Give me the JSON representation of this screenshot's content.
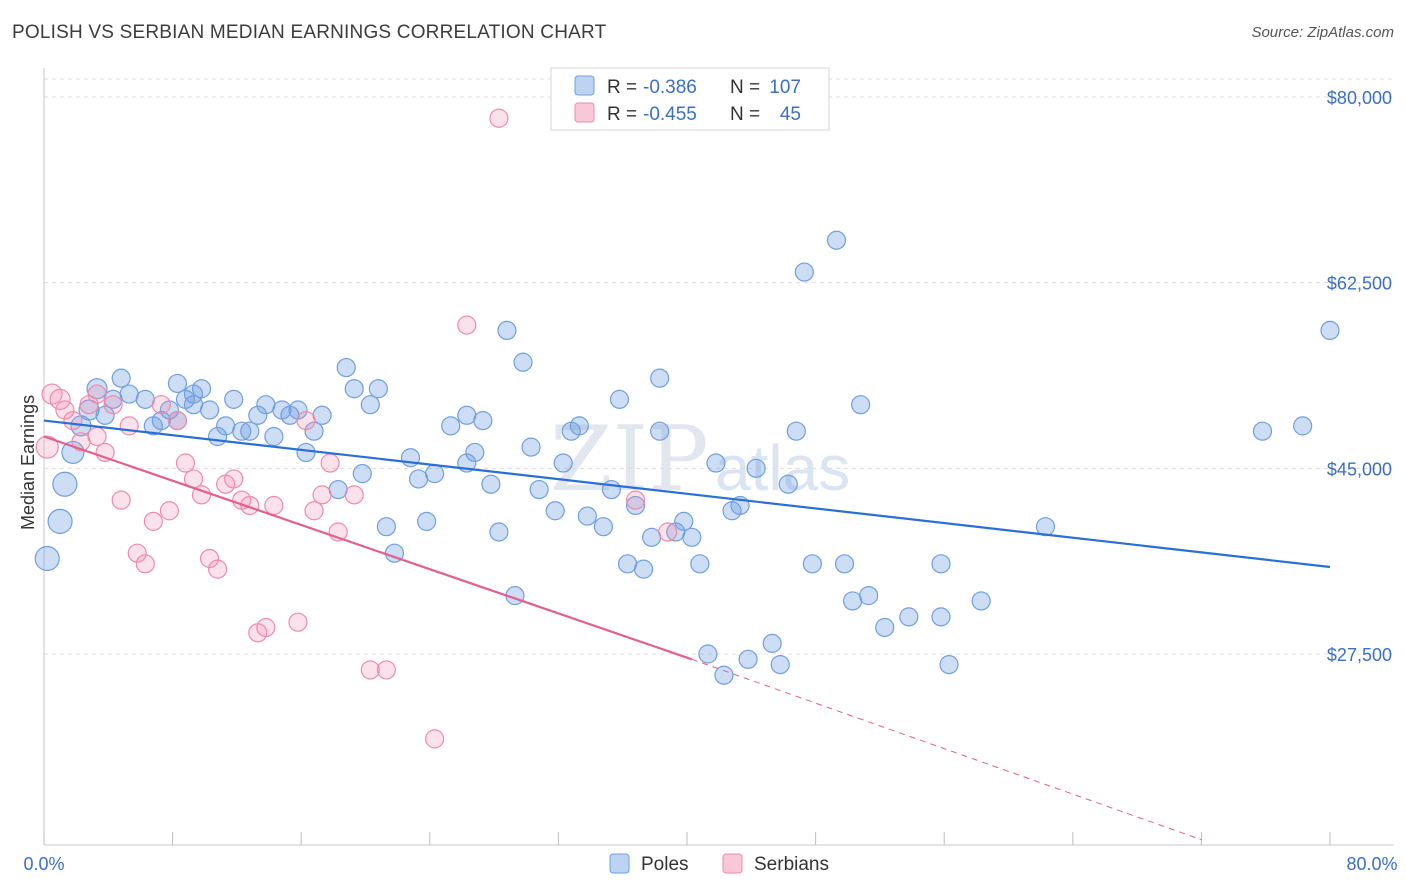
{
  "title": "POLISH VS SERBIAN MEDIAN EARNINGS CORRELATION CHART",
  "source": "Source: ZipAtlas.com",
  "watermark": {
    "part1": "ZIP",
    "part2": "atlas"
  },
  "colors": {
    "poles": "#6f9fe0",
    "poles_line": "#2a6fd6",
    "serbians": "#f08aab",
    "serbians_line": "#e35f8d",
    "tick": "#3b6fc6"
  },
  "legend": {
    "rows": [
      {
        "r_label": "R =",
        "r_value": "-0.386",
        "n_label": "N =",
        "n_value": "107"
      },
      {
        "r_label": "R =",
        "r_value": "-0.455",
        "n_label": "N =",
        "n_value": "45"
      }
    ]
  },
  "bottom_legend": {
    "poles": "Poles",
    "serbians": "Serbians"
  },
  "chart_data": {
    "type": "scatter",
    "xlabel": "",
    "ylabel": "Median Earnings",
    "xlim": [
      0,
      80
    ],
    "ylim": [
      10000,
      83000
    ],
    "x_tick_labels": {
      "left": "0.0%",
      "right": "80.0%"
    },
    "y_ticks": [
      {
        "value": 80000,
        "label": "$80,000"
      },
      {
        "value": 62500,
        "label": "$62,500"
      },
      {
        "value": 45000,
        "label": "$45,000"
      },
      {
        "value": 27500,
        "label": "$27,500"
      }
    ],
    "series": [
      {
        "name": "Poles",
        "trend": {
          "x0": 0,
          "y0": 49500,
          "x1": 80,
          "y1": 35700
        },
        "points": [
          [
            0.2,
            36500,
            12
          ],
          [
            1,
            40000,
            12
          ],
          [
            1.3,
            43500,
            12
          ],
          [
            1.8,
            46500,
            11
          ],
          [
            2.3,
            49000,
            10
          ],
          [
            2.8,
            50500,
            10
          ],
          [
            3.3,
            52500,
            10
          ],
          [
            3.8,
            50000,
            9
          ],
          [
            4.3,
            51500,
            9
          ],
          [
            4.8,
            53500,
            9
          ],
          [
            5.3,
            52000,
            9
          ],
          [
            6.3,
            51500,
            9
          ],
          [
            6.8,
            49000,
            9
          ],
          [
            7.3,
            49500,
            9
          ],
          [
            7.8,
            50500,
            9
          ],
          [
            8.3,
            49500,
            9
          ],
          [
            8.3,
            53000,
            9
          ],
          [
            8.8,
            51500,
            9
          ],
          [
            9.3,
            52000,
            9
          ],
          [
            9.3,
            51000,
            9
          ],
          [
            9.8,
            52500,
            9
          ],
          [
            10.3,
            50500,
            9
          ],
          [
            10.8,
            48000,
            9
          ],
          [
            11.3,
            49000,
            9
          ],
          [
            11.8,
            51500,
            9
          ],
          [
            12.3,
            48500,
            9
          ],
          [
            12.8,
            48500,
            9
          ],
          [
            13.3,
            50000,
            9
          ],
          [
            13.8,
            51000,
            9
          ],
          [
            14.3,
            48000,
            9
          ],
          [
            14.8,
            50500,
            9
          ],
          [
            15.3,
            50000,
            9
          ],
          [
            15.8,
            50500,
            9
          ],
          [
            16.3,
            46500,
            9
          ],
          [
            16.8,
            48500,
            9
          ],
          [
            17.3,
            50000,
            9
          ],
          [
            18.3,
            43000,
            9
          ],
          [
            18.8,
            54500,
            9
          ],
          [
            19.3,
            52500,
            9
          ],
          [
            19.8,
            44500,
            9
          ],
          [
            20.3,
            51000,
            9
          ],
          [
            20.8,
            52500,
            9
          ],
          [
            21.3,
            39500,
            9
          ],
          [
            21.8,
            37000,
            9
          ],
          [
            22.8,
            46000,
            9
          ],
          [
            23.3,
            44000,
            9
          ],
          [
            23.8,
            40000,
            9
          ],
          [
            24.3,
            44500,
            9
          ],
          [
            25.3,
            49000,
            9
          ],
          [
            26.3,
            45500,
            9
          ],
          [
            26.3,
            50000,
            9
          ],
          [
            26.8,
            46500,
            9
          ],
          [
            27.3,
            49500,
            9
          ],
          [
            27.8,
            43500,
            9
          ],
          [
            28.3,
            39000,
            9
          ],
          [
            28.8,
            58000,
            9
          ],
          [
            29.3,
            33000,
            9
          ],
          [
            29.8,
            55000,
            9
          ],
          [
            30.3,
            47000,
            9
          ],
          [
            30.8,
            43000,
            9
          ],
          [
            31.8,
            41000,
            9
          ],
          [
            32.3,
            45500,
            9
          ],
          [
            32.8,
            48500,
            9
          ],
          [
            33.3,
            49000,
            9
          ],
          [
            33.8,
            40500,
            9
          ],
          [
            34.8,
            39500,
            9
          ],
          [
            35.3,
            43000,
            9
          ],
          [
            35.8,
            51500,
            9
          ],
          [
            36.3,
            36000,
            9
          ],
          [
            36.8,
            41500,
            9
          ],
          [
            37.3,
            35500,
            9
          ],
          [
            37.8,
            38500,
            9
          ],
          [
            38.3,
            48500,
            9
          ],
          [
            38.3,
            53500,
            9
          ],
          [
            39.3,
            39000,
            9
          ],
          [
            39.8,
            40000,
            9
          ],
          [
            40.3,
            38500,
            9
          ],
          [
            40.8,
            36000,
            9
          ],
          [
            41.3,
            27500,
            9
          ],
          [
            41.8,
            45500,
            9
          ],
          [
            42.3,
            25500,
            9
          ],
          [
            42.8,
            41000,
            9
          ],
          [
            43.3,
            41500,
            9
          ],
          [
            43.8,
            27000,
            9
          ],
          [
            44.3,
            45000,
            9
          ],
          [
            45.3,
            28500,
            9
          ],
          [
            45.8,
            26500,
            9
          ],
          [
            46.3,
            43500,
            9
          ],
          [
            46.8,
            48500,
            9
          ],
          [
            47.3,
            63500,
            9
          ],
          [
            47.8,
            36000,
            9
          ],
          [
            49.3,
            66500,
            9
          ],
          [
            49.8,
            36000,
            9
          ],
          [
            50.3,
            32500,
            9
          ],
          [
            50.8,
            51000,
            9
          ],
          [
            51.3,
            33000,
            9
          ],
          [
            52.3,
            30000,
            9
          ],
          [
            53.8,
            31000,
            9
          ],
          [
            55.8,
            31000,
            9
          ],
          [
            55.8,
            36000,
            9
          ],
          [
            56.3,
            26500,
            9
          ],
          [
            58.3,
            32500,
            9
          ],
          [
            62.3,
            39500,
            9
          ],
          [
            75.8,
            48500,
            9
          ],
          [
            78.3,
            49000,
            9
          ],
          [
            80.0,
            58000,
            9
          ]
        ]
      },
      {
        "name": "Serbians",
        "trend": {
          "x0": 0,
          "y0": 48000,
          "x1": 40.3,
          "y1": 27000,
          "dash_x1": 72,
          "dash_y1": 10000
        },
        "points": [
          [
            0.2,
            47000,
            11
          ],
          [
            0.5,
            52000,
            10
          ],
          [
            1,
            51500,
            10
          ],
          [
            1.3,
            50500,
            9
          ],
          [
            1.8,
            49500,
            9
          ],
          [
            2.3,
            47500,
            9
          ],
          [
            2.8,
            51000,
            9
          ],
          [
            3.3,
            48000,
            9
          ],
          [
            3.3,
            52000,
            9
          ],
          [
            3.8,
            46500,
            9
          ],
          [
            4.3,
            51000,
            9
          ],
          [
            4.8,
            42000,
            9
          ],
          [
            5.3,
            49000,
            9
          ],
          [
            5.8,
            37000,
            9
          ],
          [
            6.3,
            36000,
            9
          ],
          [
            6.8,
            40000,
            9
          ],
          [
            7.3,
            51000,
            9
          ],
          [
            7.8,
            41000,
            9
          ],
          [
            8.3,
            49500,
            9
          ],
          [
            8.8,
            45500,
            9
          ],
          [
            9.3,
            44000,
            9
          ],
          [
            9.8,
            42500,
            9
          ],
          [
            10.3,
            36500,
            9
          ],
          [
            10.8,
            35500,
            9
          ],
          [
            11.3,
            43500,
            9
          ],
          [
            11.8,
            44000,
            9
          ],
          [
            12.3,
            42000,
            9
          ],
          [
            12.8,
            41500,
            9
          ],
          [
            13.3,
            29500,
            9
          ],
          [
            13.8,
            30000,
            9
          ],
          [
            14.3,
            41500,
            9
          ],
          [
            15.8,
            30500,
            9
          ],
          [
            16.3,
            49500,
            9
          ],
          [
            16.8,
            41000,
            9
          ],
          [
            17.3,
            42500,
            9
          ],
          [
            17.8,
            45500,
            9
          ],
          [
            18.3,
            39000,
            9
          ],
          [
            19.3,
            42500,
            9
          ],
          [
            20.3,
            26000,
            9
          ],
          [
            21.3,
            26000,
            9
          ],
          [
            24.3,
            19500,
            9
          ],
          [
            26.3,
            58500,
            9
          ],
          [
            28.3,
            78000,
            9
          ],
          [
            36.8,
            42000,
            9
          ],
          [
            38.8,
            39000,
            9
          ]
        ]
      }
    ],
    "grid": true,
    "legend_position": "top-center"
  }
}
